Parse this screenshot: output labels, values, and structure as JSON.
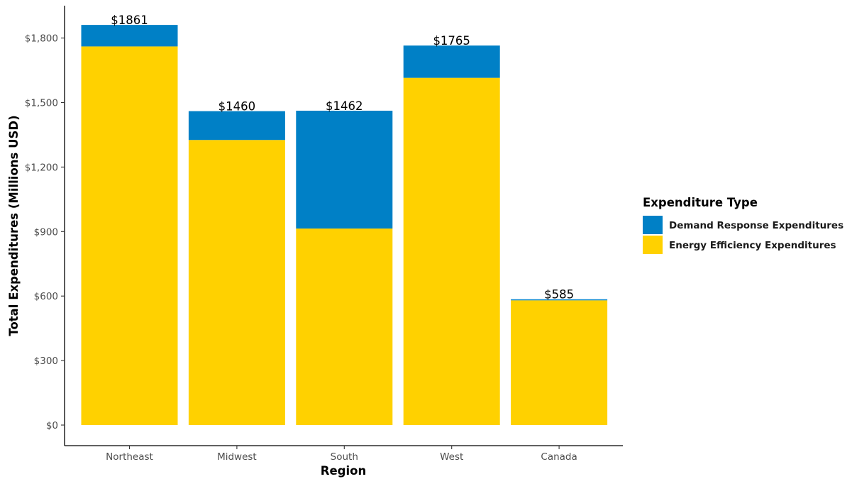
{
  "chart_data": {
    "type": "bar",
    "stacked": true,
    "title": "",
    "xlabel": "Region",
    "ylabel": "Total Expenditures (Millions USD)",
    "categories": [
      "Northeast",
      "Midwest",
      "South",
      "West",
      "Canada"
    ],
    "series": [
      {
        "name": "Energy Efficiency Expenditures",
        "color": "#FFD100",
        "values": [
          1761,
          1326,
          914,
          1615,
          580
        ]
      },
      {
        "name": "Demand Response Expenditures",
        "color": "#0080C6",
        "values": [
          100,
          134,
          548,
          150,
          5
        ]
      }
    ],
    "totals": [
      1861,
      1460,
      1462,
      1765,
      585
    ],
    "total_labels": [
      "$1861",
      "$1460",
      "$1462",
      "$1765",
      "$585"
    ],
    "ylim": [
      0,
      1900
    ],
    "yticks": [
      0,
      300,
      600,
      900,
      1200,
      1500,
      1800
    ],
    "ytick_labels": [
      "$0",
      "$300",
      "$600",
      "$900",
      "$1,200",
      "$1,500",
      "$1,800"
    ],
    "grid": false,
    "legend": {
      "title": "Expenditure Type",
      "position": "right",
      "items": [
        {
          "label": "Demand Response Expenditures",
          "color": "#0080C6"
        },
        {
          "label": "Energy Efficiency Expenditures",
          "color": "#FFD100"
        }
      ]
    }
  }
}
